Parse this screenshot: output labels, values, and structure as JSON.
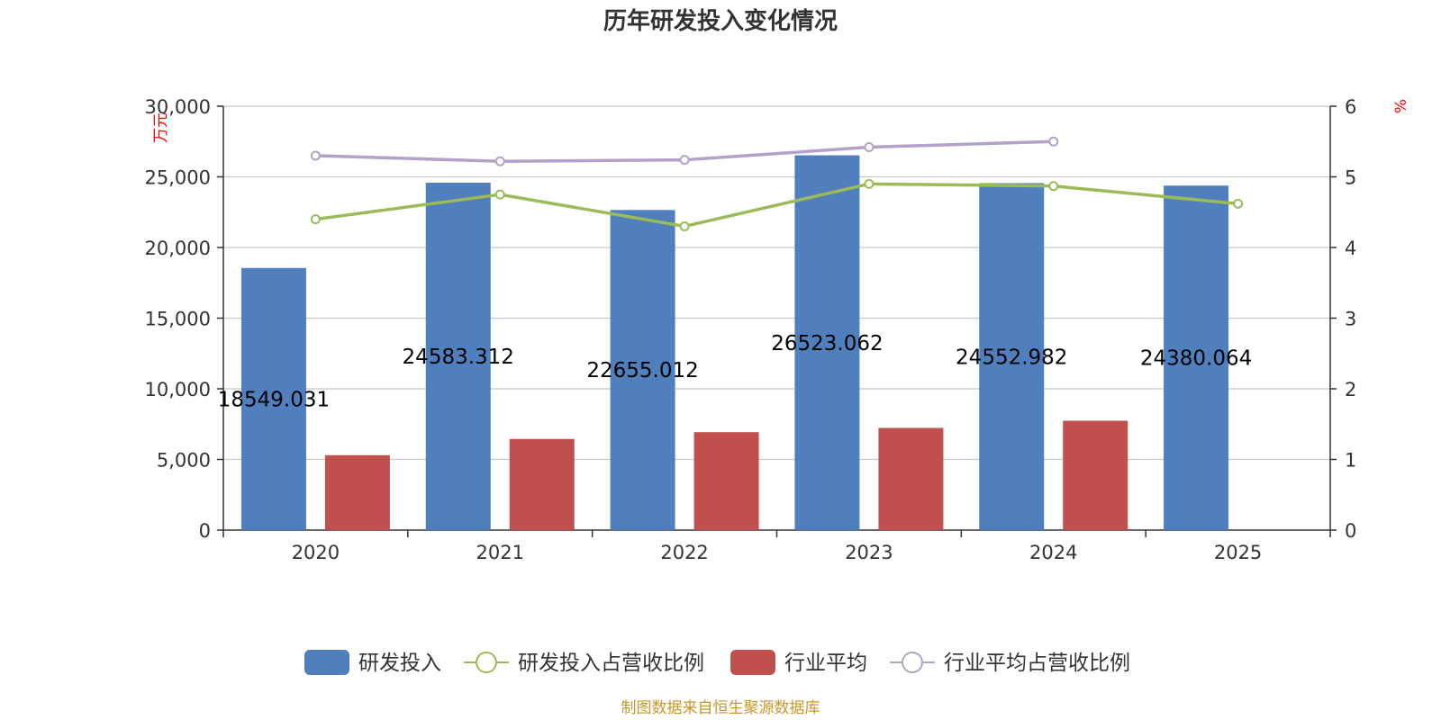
{
  "title": "历年研发投入变化情况",
  "source": "制图数据来自恒生聚源数据库",
  "colors": {
    "rd": "#4f7fbd",
    "industry": "#c0504d",
    "rd_ratio": "#9bbb59",
    "industry_ratio": "#b3a2c7",
    "axis": "#333333",
    "grid": "#c8c8c8",
    "unit": "#ff0000",
    "source": "#c8962a"
  },
  "chart_data": {
    "type": "bar",
    "title": "历年研发投入变化情况",
    "categories": [
      "2020",
      "2021",
      "2022",
      "2023",
      "2024",
      "2025"
    ],
    "y_left": {
      "label": "万元",
      "min": 0,
      "max": 30000,
      "step": 5000,
      "ticks": [
        "0",
        "5,000",
        "10,000",
        "15,000",
        "20,000",
        "25,000",
        "30,000"
      ]
    },
    "y_right": {
      "label": "%",
      "min": 0,
      "max": 6,
      "step": 1,
      "ticks": [
        "0",
        "1",
        "2",
        "3",
        "4",
        "5",
        "6"
      ]
    },
    "grid": true,
    "legend_position": "bottom",
    "series": [
      {
        "name": "研发投入",
        "type": "bar",
        "axis": "left",
        "values": [
          18549.031,
          24583.312,
          22655.012,
          26523.062,
          24552.982,
          24380.064
        ],
        "labels": [
          "18549.031",
          "24583.312",
          "22655.012",
          "26523.062",
          "24552.982",
          "24380.064"
        ]
      },
      {
        "name": "研发投入占营收比例",
        "type": "line",
        "axis": "right",
        "values": [
          4.4,
          4.75,
          4.3,
          4.9,
          4.87,
          4.62
        ]
      },
      {
        "name": "行业平均",
        "type": "bar",
        "axis": "left",
        "values": [
          5300,
          6450,
          6930,
          7230,
          7740,
          null
        ]
      },
      {
        "name": "行业平均占营收比例",
        "type": "line",
        "axis": "right",
        "values": [
          5.3,
          5.22,
          5.24,
          5.42,
          5.5,
          null
        ]
      }
    ]
  }
}
